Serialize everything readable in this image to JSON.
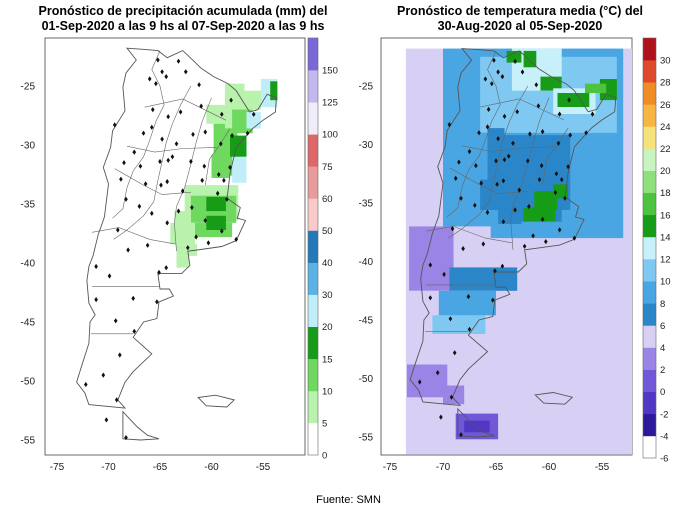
{
  "maps": [
    {
      "title_line1": "Pronóstico de precipitación acumulada (mm) del",
      "title_line2": "01-Sep-2020 a las 9 hs al 07-Sep-2020 a las 9 hs",
      "lat_ticks": [
        "-25",
        "-30",
        "-35",
        "-40",
        "-45",
        "-50",
        "-55"
      ],
      "lon_ticks": [
        "-75",
        "-70",
        "-65",
        "-60",
        "-55"
      ],
      "colorbar": {
        "levels": [
          "0",
          "5",
          "10",
          "15",
          "20",
          "30",
          "40",
          "50",
          "60",
          "75",
          "100",
          "125",
          "150"
        ],
        "colors": [
          "#ffffff",
          "#b9f2ac",
          "#6ed85f",
          "#169c16",
          "#bfeef8",
          "#5ab2e4",
          "#2479b9",
          "#f8caca",
          "#e99a9a",
          "#de6868",
          "#f0ecfa",
          "#c4b8ef",
          "#7a68d8"
        ]
      }
    },
    {
      "title_line1": "Pronóstico de temperatura media (°C) del",
      "title_line2": "30-Aug-2020 al 05-Sep-2020",
      "lat_ticks": [
        "-25",
        "-30",
        "-35",
        "-40",
        "-45",
        "-50",
        "-55"
      ],
      "lon_ticks": [
        "-75",
        "-70",
        "-65",
        "-60",
        "-55"
      ],
      "colorbar": {
        "levels": [
          "-6",
          "-4",
          "-2",
          "0",
          "2",
          "4",
          "6",
          "8",
          "10",
          "12",
          "14",
          "16",
          "18",
          "20",
          "22",
          "24",
          "26",
          "28",
          "30"
        ],
        "colors": [
          "#ffffff",
          "#2d1a9b",
          "#5137c4",
          "#7058d8",
          "#9a85e6",
          "#d7d0f4",
          "#2a86c9",
          "#4aa6e2",
          "#7ec8f2",
          "#c8f0fb",
          "#169c16",
          "#4cc43e",
          "#8ee07c",
          "#c8f5bf",
          "#f6e27a",
          "#f7b544",
          "#ef8c23",
          "#de4a2c",
          "#b0121b"
        ]
      }
    }
  ],
  "source": "Fuente: SMN"
}
